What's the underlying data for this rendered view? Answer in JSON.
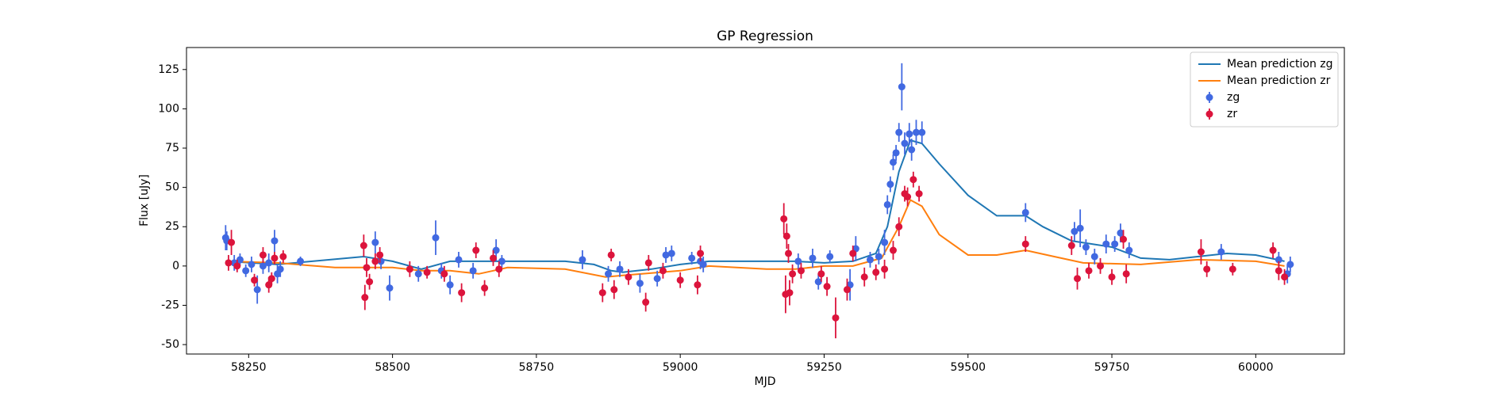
{
  "chart_data": {
    "type": "scatter",
    "title": "GP Regression",
    "x_label": "MJD",
    "y_label": "Flux [uJy]",
    "xlim": [
      58142,
      60154
    ],
    "ylim": [
      -56,
      139
    ],
    "xticks": [
      58250,
      58500,
      58750,
      59000,
      59250,
      59500,
      59750,
      60000
    ],
    "yticks": [
      -50,
      -25,
      0,
      25,
      50,
      75,
      100,
      125
    ],
    "legend": "upper right",
    "grid": false,
    "series": [
      {
        "name": "Mean prediction zg",
        "type": "line",
        "color": "#1f77b4",
        "x": [
          58210,
          58300,
          58450,
          58500,
          58550,
          58600,
          58700,
          58800,
          58850,
          58880,
          58900,
          58950,
          59000,
          59050,
          59100,
          59200,
          59250,
          59300,
          59340,
          59360,
          59380,
          59400,
          59420,
          59450,
          59500,
          59550,
          59600,
          59630,
          59680,
          59750,
          59800,
          59850,
          59950,
          60000,
          60050
        ],
        "values": [
          3,
          1,
          6,
          3,
          -2,
          3,
          3,
          3,
          1,
          -3,
          -4,
          -2,
          1,
          3,
          3,
          3,
          2,
          3,
          8,
          25,
          60,
          80,
          78,
          65,
          45,
          32,
          32,
          25,
          16,
          12,
          5,
          4,
          8,
          7,
          3
        ]
      },
      {
        "name": "Mean prediction zr",
        "type": "line",
        "color": "#ff7f0e",
        "x": [
          58210,
          58300,
          58400,
          58500,
          58550,
          58600,
          58650,
          58700,
          58800,
          58870,
          58900,
          59000,
          59050,
          59150,
          59200,
          59250,
          59300,
          59350,
          59380,
          59400,
          59420,
          59450,
          59500,
          59550,
          59600,
          59650,
          59700,
          59800,
          59900,
          60000,
          60050
        ],
        "values": [
          3,
          2,
          -1,
          -1,
          -3,
          -3,
          -5,
          -1,
          -2,
          -7,
          -6,
          -3,
          0,
          -2,
          -2,
          0,
          0,
          5,
          25,
          42,
          38,
          20,
          7,
          7,
          10,
          6,
          2,
          1,
          4,
          3,
          0
        ]
      },
      {
        "name": "zg",
        "type": "errorbar",
        "color": "#4169e1",
        "x": [
          58210,
          58212,
          58225,
          58235,
          58245,
          58255,
          58265,
          58275,
          58285,
          58295,
          58300,
          58305,
          58340,
          58470,
          58480,
          58495,
          58545,
          58575,
          58585,
          58600,
          58615,
          58640,
          58680,
          58690,
          58830,
          58875,
          58895,
          58930,
          58960,
          58975,
          58985,
          59020,
          59035,
          59040,
          59205,
          59230,
          59240,
          59260,
          59295,
          59305,
          59330,
          59345,
          59355,
          59360,
          59365,
          59370,
          59375,
          59380,
          59385,
          59390,
          59398,
          59402,
          59410,
          59420,
          59600,
          59685,
          59695,
          59705,
          59720,
          59740,
          59755,
          59765,
          59780,
          59940,
          60040,
          60055,
          60060
        ],
        "values": [
          18,
          16,
          2,
          4,
          -3,
          1,
          -15,
          0,
          2,
          16,
          -5,
          -2,
          3,
          15,
          3,
          -14,
          -5,
          18,
          -3,
          -12,
          4,
          -3,
          10,
          3,
          4,
          -5,
          -2,
          -11,
          -8,
          7,
          8,
          5,
          3,
          1,
          3,
          5,
          -10,
          6,
          -12,
          11,
          4,
          6,
          15,
          39,
          52,
          66,
          72,
          85,
          114,
          78,
          84,
          74,
          85,
          85,
          34,
          22,
          24,
          12,
          6,
          14,
          14,
          21,
          10,
          9,
          4,
          -5,
          1
        ],
        "errors": [
          8,
          6,
          5,
          4,
          4,
          5,
          9,
          5,
          6,
          7,
          6,
          5,
          3,
          7,
          5,
          8,
          5,
          11,
          5,
          6,
          5,
          5,
          7,
          4,
          6,
          5,
          5,
          6,
          5,
          5,
          5,
          4,
          5,
          5,
          5,
          6,
          5,
          4,
          10,
          8,
          5,
          5,
          8,
          6,
          5,
          5,
          5,
          6,
          15,
          7,
          7,
          7,
          8,
          7,
          6,
          6,
          12,
          5,
          5,
          6,
          5,
          6,
          5,
          5,
          5,
          6,
          5
        ]
      },
      {
        "name": "zr",
        "type": "errorbar",
        "color": "#dc143c",
        "x": [
          58215,
          58220,
          58230,
          58260,
          58275,
          58285,
          58290,
          58295,
          58310,
          58450,
          58452,
          58455,
          58460,
          58470,
          58478,
          58530,
          58560,
          58590,
          58620,
          58645,
          58660,
          58675,
          58685,
          58865,
          58880,
          58885,
          58910,
          58940,
          58945,
          58970,
          59000,
          59030,
          59035,
          59180,
          59183,
          59185,
          59188,
          59190,
          59195,
          59210,
          59245,
          59255,
          59270,
          59290,
          59300,
          59320,
          59340,
          59355,
          59370,
          59380,
          59390,
          59395,
          59405,
          59415,
          59600,
          59680,
          59690,
          59710,
          59730,
          59750,
          59770,
          59775,
          59905,
          59915,
          59960,
          60030,
          60040,
          60050
        ],
        "values": [
          2,
          15,
          0,
          -9,
          7,
          -12,
          -8,
          5,
          6,
          13,
          -20,
          -1,
          -10,
          3,
          7,
          -2,
          -4,
          -5,
          -17,
          10,
          -14,
          5,
          -2,
          -17,
          7,
          -15,
          -7,
          -23,
          2,
          -3,
          -9,
          -12,
          8,
          30,
          -18,
          19,
          8,
          -17,
          -5,
          -3,
          -5,
          -13,
          -33,
          -15,
          8,
          -7,
          -4,
          -2,
          10,
          25,
          46,
          44,
          55,
          46,
          14,
          13,
          -8,
          -3,
          0,
          -7,
          17,
          -5,
          9,
          -2,
          -2,
          10,
          -3,
          -7
        ],
        "errors": [
          5,
          8,
          4,
          4,
          5,
          5,
          4,
          4,
          4,
          7,
          8,
          6,
          5,
          5,
          5,
          5,
          4,
          5,
          6,
          5,
          5,
          5,
          5,
          6,
          4,
          6,
          5,
          6,
          5,
          5,
          5,
          6,
          5,
          10,
          12,
          8,
          6,
          8,
          6,
          5,
          5,
          6,
          13,
          7,
          5,
          6,
          5,
          6,
          6,
          6,
          5,
          6,
          5,
          5,
          5,
          6,
          7,
          5,
          5,
          5,
          6,
          6,
          8,
          5,
          4,
          5,
          6,
          5
        ]
      }
    ]
  }
}
